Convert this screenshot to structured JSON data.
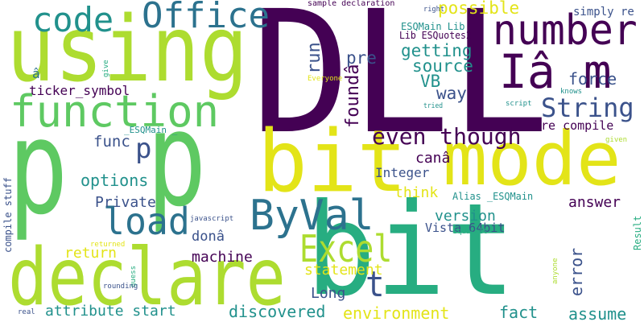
{
  "palette": {
    "purple": "#440154",
    "indigo": "#3b528b",
    "blue": "#2c728e",
    "teal": "#21918c",
    "green": "#27ad81",
    "lime": "#5ec962",
    "yellowgreen": "#addc30",
    "yellow": "#e3e418"
  },
  "words": [
    {
      "key": "DLL",
      "text": "DLL",
      "color": "purple"
    },
    {
      "key": "using",
      "text": "using",
      "color": "yellowgreen"
    },
    {
      "key": "p1",
      "text": "p",
      "color": "lime"
    },
    {
      "key": "p2",
      "text": "p",
      "color": "lime"
    },
    {
      "key": "bit1",
      "text": "bit",
      "color": "green"
    },
    {
      "key": "bit2",
      "text": "bit",
      "color": "yellow"
    },
    {
      "key": "mode",
      "text": "mode",
      "color": "yellow"
    },
    {
      "key": "declare",
      "text": "declare",
      "color": "yellowgreen"
    },
    {
      "key": "code",
      "text": "code",
      "color": "teal"
    },
    {
      "key": "office",
      "text": "Office",
      "color": "blue"
    },
    {
      "key": "number",
      "text": "number",
      "color": "purple"
    },
    {
      "key": "iam",
      "text": "Iâ m",
      "color": "purple"
    },
    {
      "key": "function",
      "text": "function",
      "color": "lime"
    },
    {
      "key": "string",
      "text": "String",
      "color": "indigo"
    },
    {
      "key": "byval",
      "text": "ByVal",
      "color": "blue"
    },
    {
      "key": "load",
      "text": "load",
      "color": "blue"
    },
    {
      "key": "excel",
      "text": "Excel",
      "color": "yellowgreen"
    },
    {
      "key": "even_though",
      "text": "even though",
      "color": "purple"
    },
    {
      "key": "t",
      "text": "t",
      "color": "indigo"
    },
    {
      "key": "p3",
      "text": "p",
      "color": "indigo"
    },
    {
      "key": "possible",
      "text": "possible",
      "color": "yellow"
    },
    {
      "key": "getting",
      "text": "getting",
      "color": "teal"
    },
    {
      "key": "source",
      "text": "source",
      "color": "teal"
    },
    {
      "key": "force",
      "text": "force",
      "color": "indigo"
    },
    {
      "key": "pre",
      "text": "pre",
      "color": "indigo"
    },
    {
      "key": "vb",
      "text": "VB",
      "color": "teal"
    },
    {
      "key": "way",
      "text": "way",
      "color": "indigo"
    },
    {
      "key": "run",
      "text": "run",
      "color": "indigo"
    },
    {
      "key": "founda",
      "text": "foundâ",
      "color": "purple"
    },
    {
      "key": "ticker",
      "text": "ticker_symbol",
      "color": "purple"
    },
    {
      "key": "a_hat",
      "text": "â",
      "color": "blue"
    },
    {
      "key": "func",
      "text": "func",
      "color": "indigo"
    },
    {
      "key": "options",
      "text": "options",
      "color": "teal"
    },
    {
      "key": "private",
      "text": "Private",
      "color": "indigo"
    },
    {
      "key": "version",
      "text": "version",
      "color": "teal"
    },
    {
      "key": "answer",
      "text": "answer",
      "color": "purple"
    },
    {
      "key": "think",
      "text": "think",
      "color": "yellow"
    },
    {
      "key": "cana",
      "text": "canâ",
      "color": "purple"
    },
    {
      "key": "integer",
      "text": "Integer",
      "color": "indigo"
    },
    {
      "key": "return",
      "text": "return",
      "color": "yellow"
    },
    {
      "key": "dona",
      "text": "donâ",
      "color": "indigo"
    },
    {
      "key": "machine",
      "text": "machine",
      "color": "purple"
    },
    {
      "key": "statement",
      "text": "statement",
      "color": "yellow"
    },
    {
      "key": "long",
      "text": "Long",
      "color": "indigo"
    },
    {
      "key": "vista",
      "text": "Vista 64bit",
      "color": "indigo"
    },
    {
      "key": "attribute",
      "text": "attribute start",
      "color": "teal"
    },
    {
      "key": "discovered",
      "text": "discovered",
      "color": "teal"
    },
    {
      "key": "environment",
      "text": "environment",
      "color": "yellow"
    },
    {
      "key": "fact",
      "text": "fact",
      "color": "teal"
    },
    {
      "key": "assume",
      "text": "assume",
      "color": "teal"
    },
    {
      "key": "error",
      "text": "error",
      "color": "indigo"
    },
    {
      "key": "re_compile",
      "text": "re compile",
      "color": "purple"
    },
    {
      "key": "compile_stuff",
      "text": "compile stuff",
      "color": "indigo"
    },
    {
      "key": "alias",
      "text": "Alias _ESQMain",
      "color": "teal"
    },
    {
      "key": "esqmain_lib",
      "text": "ESQMain Lib",
      "color": "teal"
    },
    {
      "key": "lib_esquotes",
      "text": "Lib ESQuotes2",
      "color": "purple"
    },
    {
      "key": "simply_re",
      "text": "simply re",
      "color": "indigo"
    },
    {
      "key": "sample_decl",
      "text": "sample declaration",
      "color": "purple"
    },
    {
      "key": "esqmain_u",
      "text": "_ESQMain _",
      "color": "teal"
    },
    {
      "key": "result",
      "text": "Result",
      "color": "green"
    },
    {
      "key": "give",
      "text": "give",
      "color": "green"
    },
    {
      "key": "everyone",
      "text": "Everyone",
      "color": "yellow"
    },
    {
      "key": "right",
      "text": "right",
      "color": "indigo"
    },
    {
      "key": "knows",
      "text": "knows",
      "color": "teal"
    },
    {
      "key": "tried",
      "text": "tried",
      "color": "teal"
    },
    {
      "key": "script",
      "text": "script",
      "color": "teal"
    },
    {
      "key": "given",
      "text": "given",
      "color": "yellowgreen"
    },
    {
      "key": "javascript",
      "text": "javascript",
      "color": "indigo"
    },
    {
      "key": "returned",
      "text": "returned",
      "color": "yellow"
    },
    {
      "key": "squareit",
      "text": "squareIt",
      "color": "green"
    },
    {
      "key": "guess",
      "text": "guess",
      "color": "green"
    },
    {
      "key": "anyone",
      "text": "anyone",
      "color": "yellowgreen"
    },
    {
      "key": "rounding",
      "text": "rounding",
      "color": "indigo"
    },
    {
      "key": "real",
      "text": "real",
      "color": "indigo"
    }
  ]
}
